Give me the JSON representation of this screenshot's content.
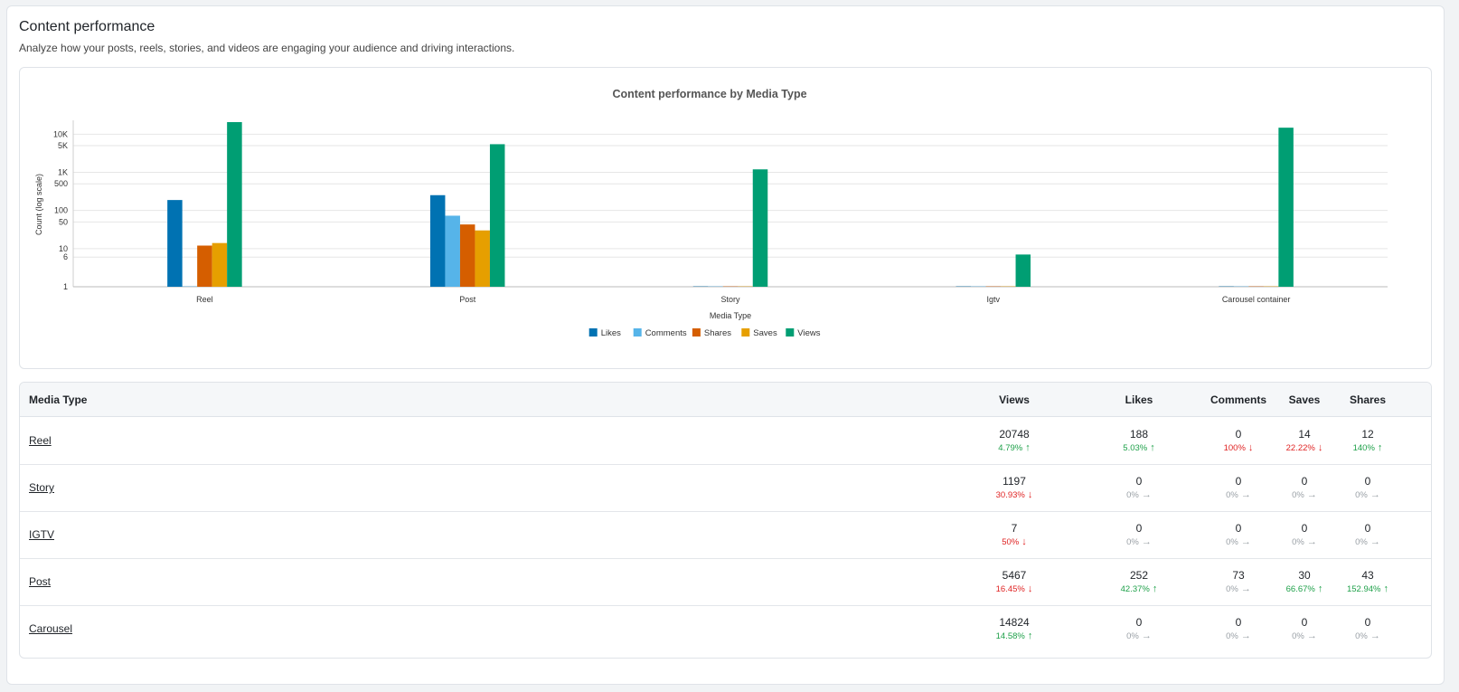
{
  "page": {
    "title": "Content performance",
    "subtitle": "Analyze how your posts, reels, stories, and videos are engaging your audience and driving interactions."
  },
  "chart_data": {
    "type": "bar",
    "title": "Content performance by Media Type",
    "xlabel": "Media Type",
    "ylabel": "Count (log scale)",
    "scale": "log",
    "ylim": [
      1,
      20748
    ],
    "yticks": [
      1,
      6,
      10,
      50,
      100,
      500,
      1000,
      5000,
      10000
    ],
    "ytick_labels": [
      "1",
      "6",
      "10",
      "50",
      "100",
      "500",
      "1K",
      "5K",
      "10K"
    ],
    "categories": [
      "Reel",
      "Post",
      "Story",
      "Igtv",
      "Carousel container"
    ],
    "legend_position": "bottom-center",
    "grid": true,
    "series": [
      {
        "name": "Likes",
        "color": "#0072b2",
        "values": [
          188,
          252,
          0,
          0,
          0
        ]
      },
      {
        "name": "Comments",
        "color": "#56b4e9",
        "values": [
          0,
          73,
          0,
          0,
          0
        ]
      },
      {
        "name": "Shares",
        "color": "#d55e00",
        "values": [
          12,
          43,
          0,
          0,
          0
        ]
      },
      {
        "name": "Saves",
        "color": "#e69f00",
        "values": [
          14,
          30,
          0,
          0,
          0
        ]
      },
      {
        "name": "Views",
        "color": "#009e73",
        "values": [
          20748,
          5467,
          1197,
          7,
          14824
        ]
      }
    ]
  },
  "table": {
    "headers": {
      "media_type": "Media Type",
      "views": "Views",
      "likes": "Likes",
      "comments": "Comments",
      "saves": "Saves",
      "shares": "Shares"
    },
    "rows": [
      {
        "media_type": "Reel",
        "views": {
          "value": "20748",
          "change": "4.79%",
          "trend": "up"
        },
        "likes": {
          "value": "188",
          "change": "5.03%",
          "trend": "up"
        },
        "comments": {
          "value": "0",
          "change": "100%",
          "trend": "down"
        },
        "saves": {
          "value": "14",
          "change": "22.22%",
          "trend": "down"
        },
        "shares": {
          "value": "12",
          "change": "140%",
          "trend": "up"
        }
      },
      {
        "media_type": "Story",
        "views": {
          "value": "1197",
          "change": "30.93%",
          "trend": "down"
        },
        "likes": {
          "value": "0",
          "change": "0%",
          "trend": "flat"
        },
        "comments": {
          "value": "0",
          "change": "0%",
          "trend": "flat"
        },
        "saves": {
          "value": "0",
          "change": "0%",
          "trend": "flat"
        },
        "shares": {
          "value": "0",
          "change": "0%",
          "trend": "flat"
        }
      },
      {
        "media_type": "IGTV",
        "views": {
          "value": "7",
          "change": "50%",
          "trend": "down"
        },
        "likes": {
          "value": "0",
          "change": "0%",
          "trend": "flat"
        },
        "comments": {
          "value": "0",
          "change": "0%",
          "trend": "flat"
        },
        "saves": {
          "value": "0",
          "change": "0%",
          "trend": "flat"
        },
        "shares": {
          "value": "0",
          "change": "0%",
          "trend": "flat"
        }
      },
      {
        "media_type": "Post",
        "views": {
          "value": "5467",
          "change": "16.45%",
          "trend": "down"
        },
        "likes": {
          "value": "252",
          "change": "42.37%",
          "trend": "up"
        },
        "comments": {
          "value": "73",
          "change": "0%",
          "trend": "flat"
        },
        "saves": {
          "value": "30",
          "change": "66.67%",
          "trend": "up"
        },
        "shares": {
          "value": "43",
          "change": "152.94%",
          "trend": "up"
        }
      },
      {
        "media_type": "Carousel",
        "views": {
          "value": "14824",
          "change": "14.58%",
          "trend": "up"
        },
        "likes": {
          "value": "0",
          "change": "0%",
          "trend": "flat"
        },
        "comments": {
          "value": "0",
          "change": "0%",
          "trend": "flat"
        },
        "saves": {
          "value": "0",
          "change": "0%",
          "trend": "flat"
        },
        "shares": {
          "value": "0",
          "change": "0%",
          "trend": "flat"
        }
      }
    ]
  }
}
